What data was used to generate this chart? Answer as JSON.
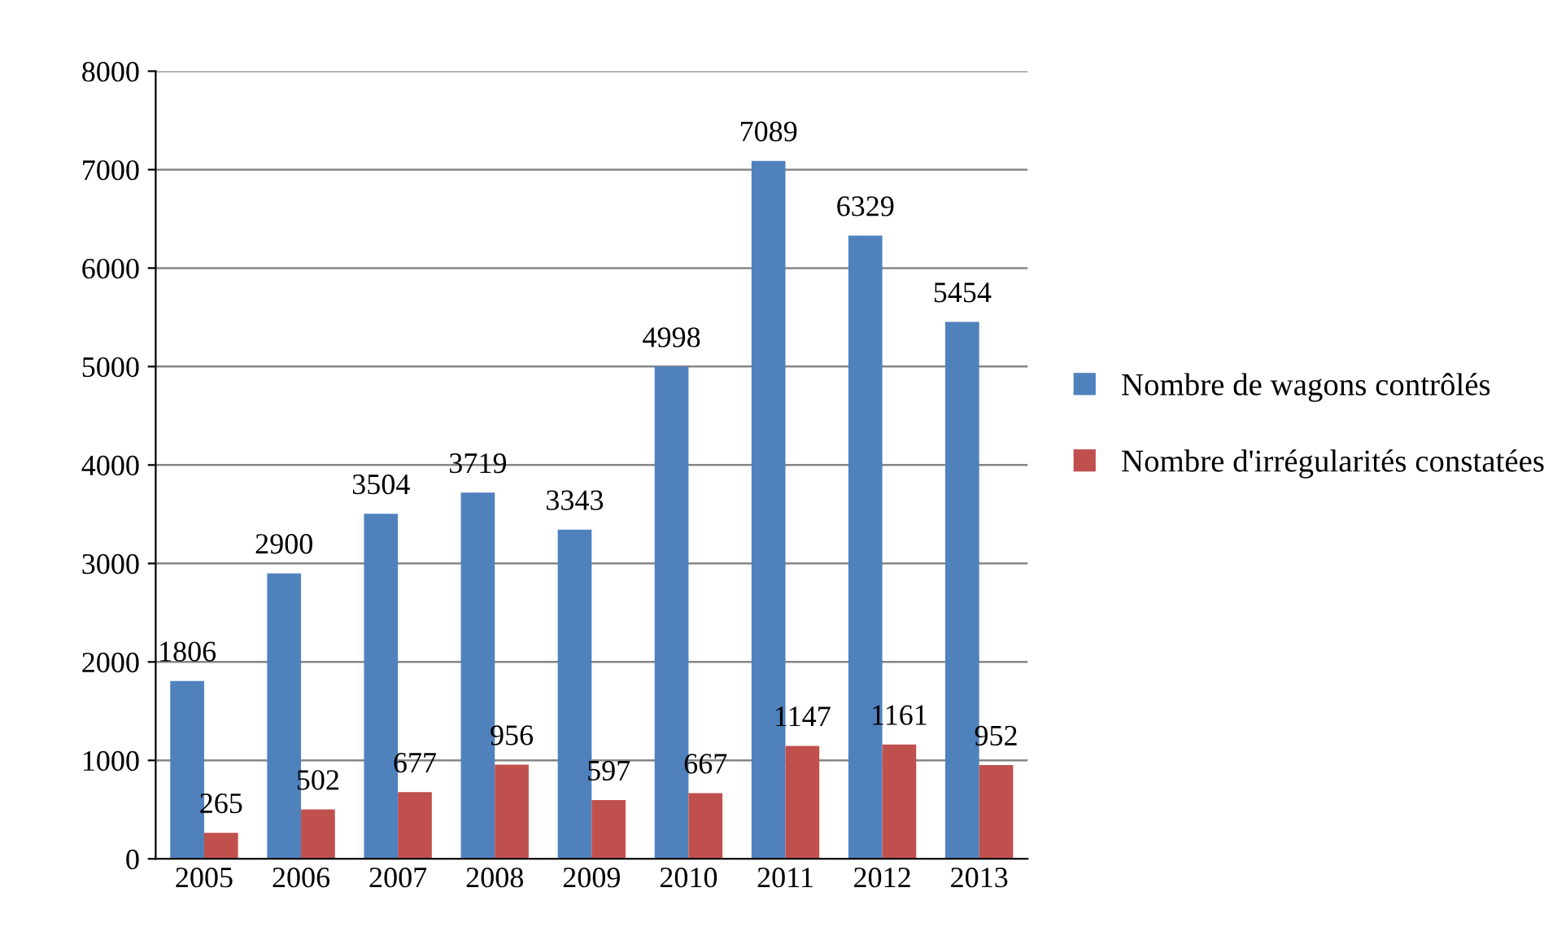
{
  "chart_data": {
    "type": "bar",
    "categories": [
      "2005",
      "2006",
      "2007",
      "2008",
      "2009",
      "2010",
      "2011",
      "2012",
      "2013"
    ],
    "series": [
      {
        "name": "Nombre de wagons contrôlés",
        "color": "#4f81bd",
        "values": [
          1806,
          2900,
          3504,
          3719,
          3343,
          4998,
          7089,
          6329,
          5454
        ]
      },
      {
        "name": "Nombre d'irrégularités constatées",
        "color": "#c0504d",
        "values": [
          265,
          502,
          677,
          956,
          597,
          667,
          1147,
          1161,
          952
        ]
      }
    ],
    "ylim": [
      0,
      8000
    ],
    "yticks": [
      0,
      1000,
      2000,
      3000,
      4000,
      5000,
      6000,
      7000,
      8000
    ],
    "grid": "y",
    "legend": "right",
    "data_labels": true
  }
}
